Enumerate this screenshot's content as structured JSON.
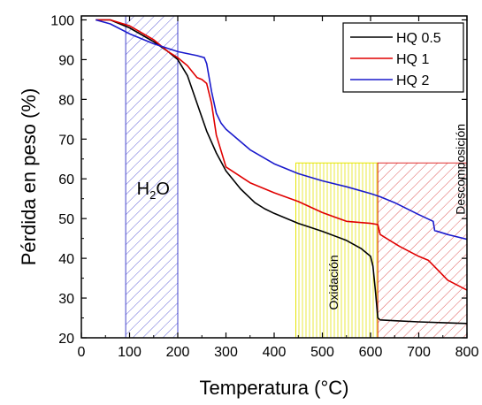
{
  "chart_data": {
    "type": "line",
    "xlabel": "Temperatura (°C)",
    "ylabel": "Pérdida en peso (%)",
    "xlim": [
      0,
      800
    ],
    "ylim": [
      20,
      101
    ],
    "xticks": [
      0,
      100,
      200,
      300,
      400,
      500,
      600,
      700,
      800
    ],
    "yticks": [
      20,
      30,
      40,
      50,
      60,
      70,
      80,
      90,
      100
    ],
    "grid": false,
    "legend_position": "top-right",
    "series": [
      {
        "name": "HQ 0.5",
        "color": "#000000",
        "x": [
          30,
          60,
          100,
          150,
          180,
          200,
          220,
          240,
          260,
          280,
          300,
          330,
          360,
          380,
          400,
          450,
          500,
          550,
          580,
          600,
          605,
          610,
          615,
          620,
          650,
          700,
          750,
          800
        ],
        "y": [
          100,
          100,
          98,
          94.5,
          92,
          90,
          86,
          79,
          72,
          66.5,
          62,
          57.5,
          54,
          52.5,
          51.3,
          48.8,
          46.8,
          44.5,
          42.5,
          40.5,
          38,
          32,
          25,
          24.5,
          24.3,
          24,
          23.8,
          23.6
        ]
      },
      {
        "name": "HQ 1",
        "color": "#e00000",
        "x": [
          30,
          60,
          100,
          150,
          180,
          200,
          220,
          240,
          250,
          260,
          270,
          280,
          300,
          350,
          400,
          450,
          500,
          550,
          600,
          615,
          620,
          640,
          660,
          700,
          720,
          740,
          760,
          800
        ],
        "y": [
          100,
          100,
          98.5,
          95,
          92,
          90.5,
          88.5,
          85.5,
          85,
          84,
          79,
          71,
          63,
          59,
          56.5,
          54.3,
          51.5,
          49.3,
          48.8,
          48.5,
          46,
          44.5,
          43,
          40.5,
          39.5,
          37,
          34.5,
          32
        ]
      },
      {
        "name": "HQ 2",
        "color": "#1a1acc",
        "x": [
          30,
          60,
          100,
          150,
          200,
          240,
          255,
          260,
          270,
          280,
          290,
          300,
          350,
          400,
          450,
          500,
          550,
          600,
          620,
          650,
          700,
          730,
          733,
          760,
          800
        ],
        "y": [
          100,
          99,
          96.5,
          94,
          92,
          91,
          90.5,
          89,
          82,
          76.5,
          74,
          72.5,
          67.3,
          63.8,
          61.3,
          59.5,
          58,
          56.3,
          55.5,
          54,
          51,
          49.3,
          47,
          46,
          44.8
        ]
      }
    ],
    "annotations": {
      "water_label_main": "H",
      "water_label_sub": "2",
      "water_label_tail": "O",
      "oxidation_label": "Oxidación",
      "decomposition_label": "Descomposición"
    },
    "regions": [
      {
        "label": "H2O",
        "x_start": 92,
        "x_end": 200,
        "y_start": 20,
        "y_end": 101,
        "color": "#4444cc"
      },
      {
        "label": "Oxidación",
        "x_start": 445,
        "x_end": 615,
        "y_start": 20,
        "y_end": 64,
        "color": "#e6e600"
      },
      {
        "label": "Descomposición",
        "x_start": 615,
        "x_end": 800,
        "y_start": 20,
        "y_end": 64,
        "color": "#e03030"
      }
    ]
  }
}
